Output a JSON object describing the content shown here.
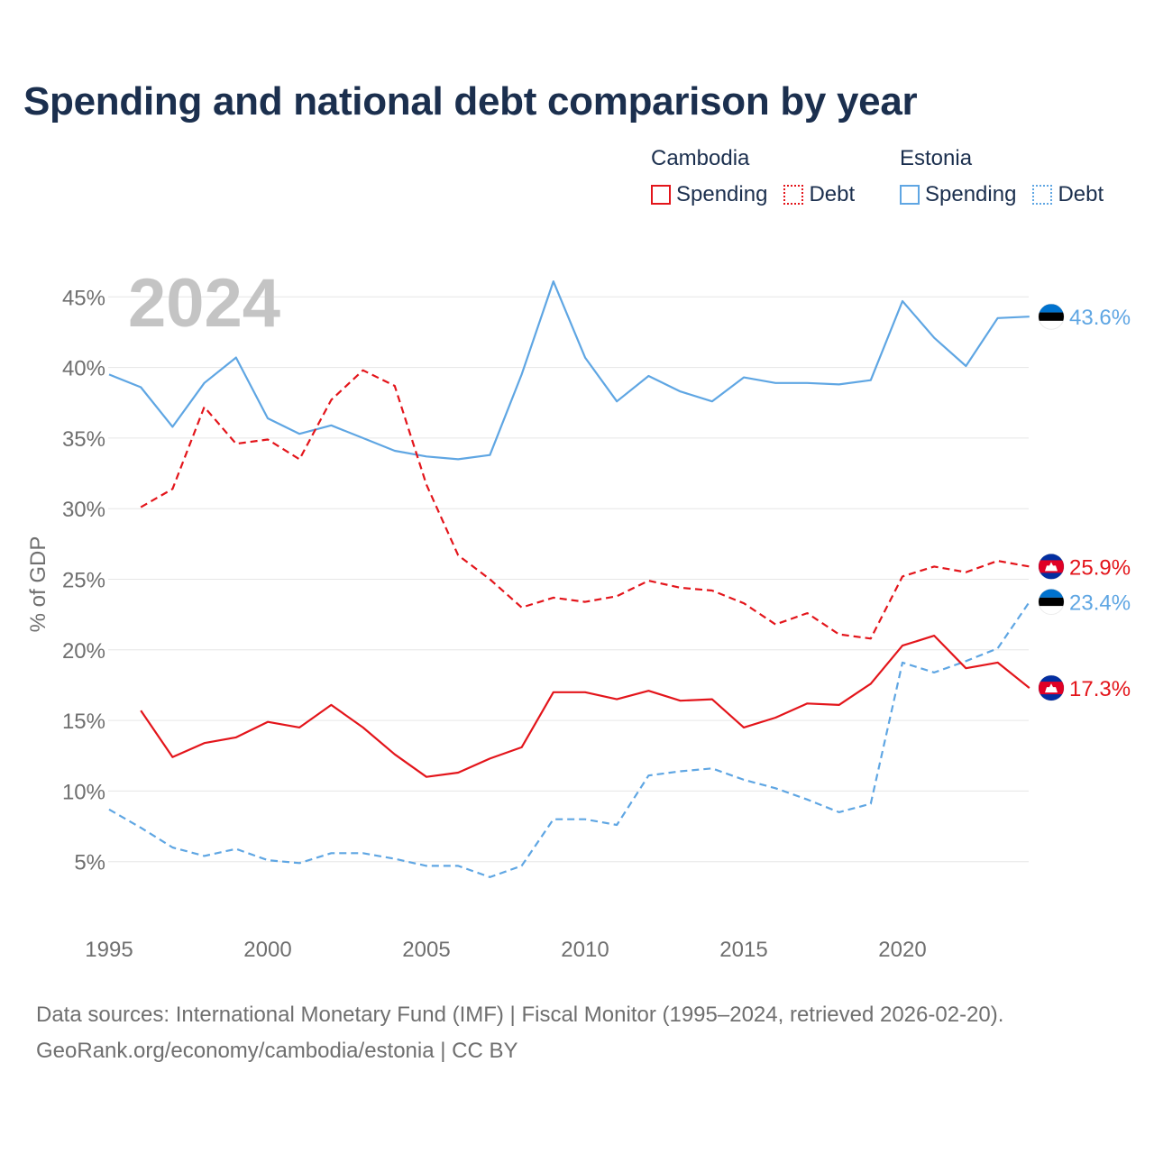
{
  "title": "Spending and national debt comparison by year",
  "legend": {
    "groups": [
      {
        "country": "Cambodia",
        "color": "#e3151b",
        "items": [
          {
            "label": "Spending",
            "style": "solid"
          },
          {
            "label": "Debt",
            "style": "dotted"
          }
        ]
      },
      {
        "country": "Estonia",
        "color": "#5fa6e3",
        "items": [
          {
            "label": "Spending",
            "style": "solid"
          },
          {
            "label": "Debt",
            "style": "dotted"
          }
        ]
      }
    ]
  },
  "year_label": "2024",
  "footer": {
    "line1": "Data sources: International Monetary Fund (IMF) | Fiscal Monitor (1995–2024, retrieved 2026-02-20).",
    "line2": "GeoRank.org/economy/cambodia/estonia | CC BY"
  },
  "colors": {
    "cambodia": "#e3151b",
    "estonia": "#5fa6e3",
    "grid": "#e6e6e6",
    "axis_text": "#6f6f6f",
    "title": "#1b2f4e",
    "year": "#c4c4c4"
  },
  "chart_data": {
    "type": "line",
    "title": "Spending and national debt comparison by year",
    "xlabel": "",
    "ylabel": "% of GDP",
    "xlim": [
      1995,
      2024
    ],
    "ylim": [
      0,
      47.5
    ],
    "x_ticks": [
      1995,
      2000,
      2005,
      2010,
      2015,
      2020
    ],
    "y_ticks": [
      5,
      10,
      15,
      20,
      25,
      30,
      35,
      40,
      45
    ],
    "y_tick_labels": [
      "5%",
      "10%",
      "15%",
      "20%",
      "25%",
      "30%",
      "35%",
      "40%",
      "45%"
    ],
    "series": [
      {
        "name": "Estonia Spending",
        "country": "Estonia",
        "style": "solid",
        "color": "#5fa6e3",
        "end_label": "43.6%",
        "x": [
          1995,
          1996,
          1997,
          1998,
          1999,
          2000,
          2001,
          2002,
          2003,
          2004,
          2005,
          2006,
          2007,
          2008,
          2009,
          2010,
          2011,
          2012,
          2013,
          2014,
          2015,
          2016,
          2017,
          2018,
          2019,
          2020,
          2021,
          2022,
          2023,
          2024
        ],
        "values": [
          39.5,
          38.6,
          35.8,
          38.9,
          40.7,
          36.4,
          35.3,
          35.9,
          35.0,
          34.1,
          33.7,
          33.5,
          33.8,
          39.5,
          46.1,
          40.7,
          37.6,
          39.4,
          38.3,
          37.6,
          39.3,
          38.9,
          38.9,
          38.8,
          39.1,
          44.7,
          42.1,
          40.1,
          43.5,
          43.6
        ]
      },
      {
        "name": "Cambodia Debt",
        "country": "Cambodia",
        "style": "dashed",
        "color": "#e3151b",
        "end_label": "25.9%",
        "x": [
          1996,
          1997,
          1998,
          1999,
          2000,
          2001,
          2002,
          2003,
          2004,
          2005,
          2006,
          2007,
          2008,
          2009,
          2010,
          2011,
          2012,
          2013,
          2014,
          2015,
          2016,
          2017,
          2018,
          2019,
          2020,
          2021,
          2022,
          2023,
          2024
        ],
        "values": [
          30.1,
          31.4,
          37.2,
          34.6,
          34.9,
          33.5,
          37.7,
          39.8,
          38.7,
          31.7,
          26.7,
          25.0,
          23.0,
          23.7,
          23.4,
          23.8,
          24.9,
          24.4,
          24.2,
          23.3,
          21.8,
          22.6,
          21.1,
          20.8,
          25.2,
          25.9,
          25.5,
          26.3,
          25.9
        ]
      },
      {
        "name": "Estonia Debt",
        "country": "Estonia",
        "style": "dashed",
        "color": "#5fa6e3",
        "end_label": "23.4%",
        "x": [
          1995,
          1996,
          1997,
          1998,
          1999,
          2000,
          2001,
          2002,
          2003,
          2004,
          2005,
          2006,
          2007,
          2008,
          2009,
          2010,
          2011,
          2012,
          2013,
          2014,
          2015,
          2016,
          2017,
          2018,
          2019,
          2020,
          2021,
          2022,
          2023,
          2024
        ],
        "values": [
          8.7,
          7.4,
          6.0,
          5.4,
          5.9,
          5.1,
          4.9,
          5.6,
          5.6,
          5.2,
          4.7,
          4.7,
          3.9,
          4.7,
          8.0,
          8.0,
          7.6,
          11.1,
          11.4,
          11.6,
          10.8,
          10.2,
          9.4,
          8.5,
          9.1,
          19.1,
          18.4,
          19.2,
          20.1,
          23.4
        ]
      },
      {
        "name": "Cambodia Spending",
        "country": "Cambodia",
        "style": "solid",
        "color": "#e3151b",
        "end_label": "17.3%",
        "x": [
          1996,
          1997,
          1998,
          1999,
          2000,
          2001,
          2002,
          2003,
          2004,
          2005,
          2006,
          2007,
          2008,
          2009,
          2010,
          2011,
          2012,
          2013,
          2014,
          2015,
          2016,
          2017,
          2018,
          2019,
          2020,
          2021,
          2022,
          2023,
          2024
        ],
        "values": [
          15.7,
          12.4,
          13.4,
          13.8,
          14.9,
          14.5,
          16.1,
          14.5,
          12.6,
          11.0,
          11.3,
          12.3,
          13.1,
          17.0,
          17.0,
          16.5,
          17.1,
          16.4,
          16.5,
          14.5,
          15.2,
          16.2,
          16.1,
          17.6,
          20.3,
          21.0,
          18.7,
          19.1,
          17.3
        ]
      }
    ]
  }
}
